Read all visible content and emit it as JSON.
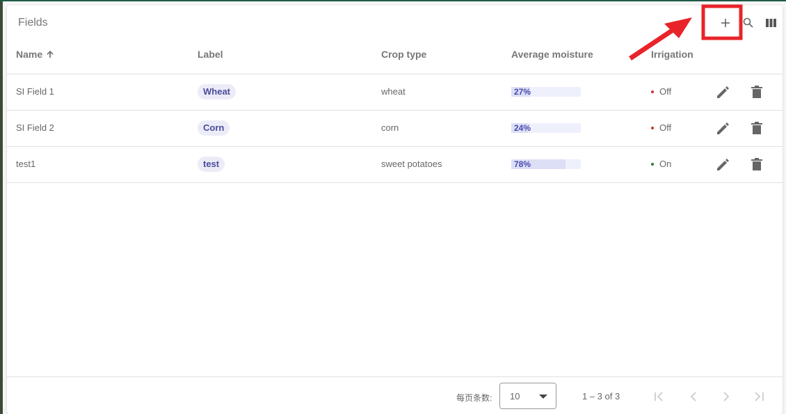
{
  "header": {
    "title": "Fields"
  },
  "table": {
    "columns": [
      "Name",
      "Label",
      "Crop type",
      "Average moisture",
      "Irrigation"
    ],
    "rows": [
      {
        "name": "SI Field 1",
        "label": "Wheat",
        "crop": "wheat",
        "moisture": {
          "value": 27,
          "label": "27%"
        },
        "irrigation": {
          "text": "Off",
          "color": "#d32f2f"
        }
      },
      {
        "name": "SI Field 2",
        "label": "Corn",
        "crop": "corn",
        "moisture": {
          "value": 24,
          "label": "24%"
        },
        "irrigation": {
          "text": "Off",
          "color": "#d32f2f"
        }
      },
      {
        "name": "test1",
        "label": "test",
        "crop": "sweet potatoes",
        "moisture": {
          "value": 78,
          "label": "78%"
        },
        "irrigation": {
          "text": "On",
          "color": "#2e7d32"
        }
      }
    ]
  },
  "footer": {
    "rows_per_page_label": "每页条数:",
    "rows_per_page": "10",
    "range": "1 – 3 of 3"
  }
}
